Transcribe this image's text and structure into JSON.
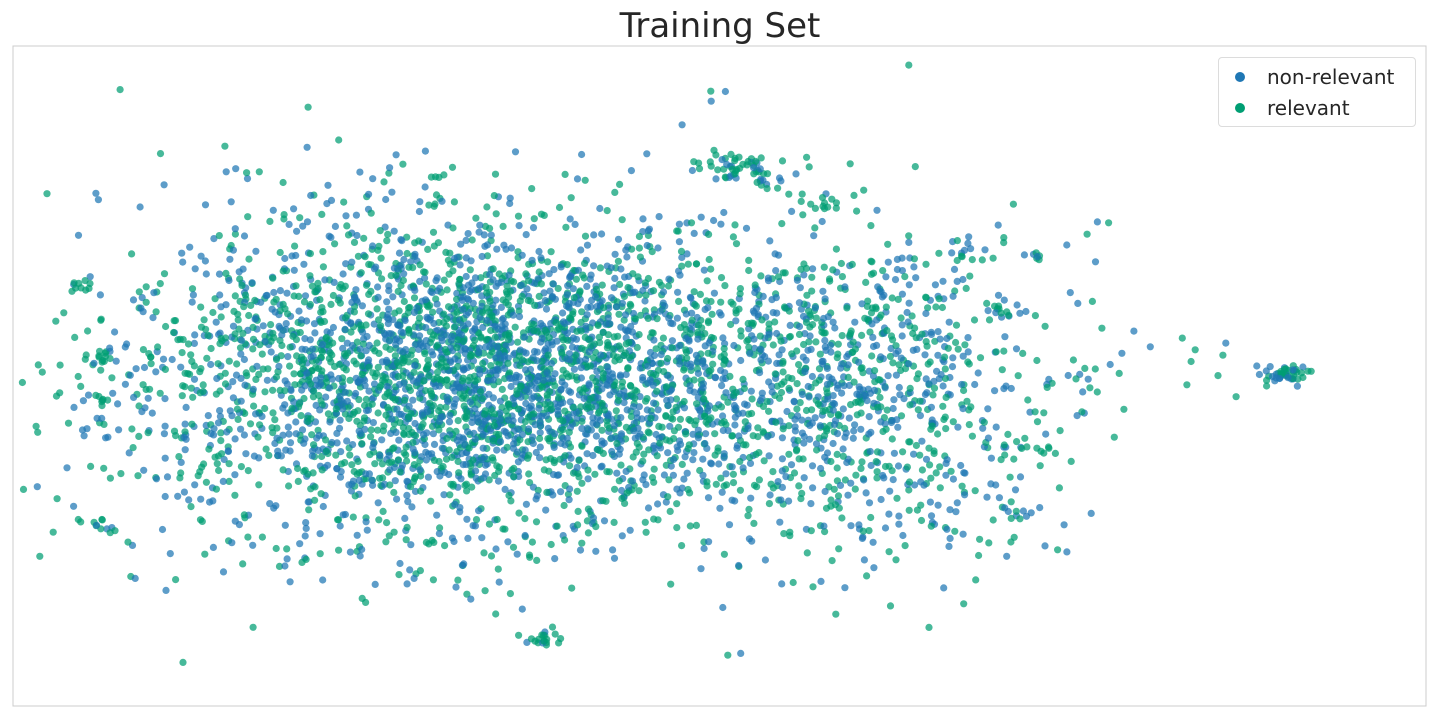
{
  "chart_data": {
    "type": "scatter",
    "title": "Training Set",
    "xlabel": "",
    "ylabel": "",
    "xlim": [
      -100,
      100
    ],
    "ylim": [
      -100,
      100
    ],
    "grid": false,
    "axes_ticks": false,
    "legend_placement": "top-right",
    "series": [
      {
        "name": "non-relevant",
        "color": "#1f77b4",
        "count": 2400
      },
      {
        "name": "relevant",
        "color": "#009e73",
        "count": 2400
      }
    ],
    "clusters": [
      {
        "x": 3,
        "y": 63,
        "n": 60,
        "spread": 3
      },
      {
        "x": 80,
        "y": 1,
        "n": 45,
        "spread": 1.5
      },
      {
        "x": 68,
        "y": 2,
        "n": 10,
        "spread": 5
      },
      {
        "x": 52,
        "y": 0,
        "n": 8,
        "spread": 5
      },
      {
        "x": -90,
        "y": 27,
        "n": 10,
        "spread": 1
      },
      {
        "x": -88,
        "y": -7,
        "n": 10,
        "spread": 1.2
      },
      {
        "x": -87,
        "y": 6,
        "n": 15,
        "spread": 1.5
      },
      {
        "x": -88,
        "y": -46,
        "n": 10,
        "spread": 1.2
      },
      {
        "x": 45,
        "y": 36,
        "n": 6,
        "spread": 0.8
      },
      {
        "x": 34,
        "y": 37,
        "n": 5,
        "spread": 0.8
      },
      {
        "x": -25,
        "y": -79,
        "n": 20,
        "spread": 1.5
      },
      {
        "x": 14,
        "y": 53,
        "n": 10,
        "spread": 2
      },
      {
        "x": 40,
        "y": 20,
        "n": 12,
        "spread": 1.5
      },
      {
        "x": 42,
        "y": -42,
        "n": 10,
        "spread": 1.5
      },
      {
        "x": 45,
        "y": -22,
        "n": 10,
        "spread": 1.5
      }
    ]
  }
}
